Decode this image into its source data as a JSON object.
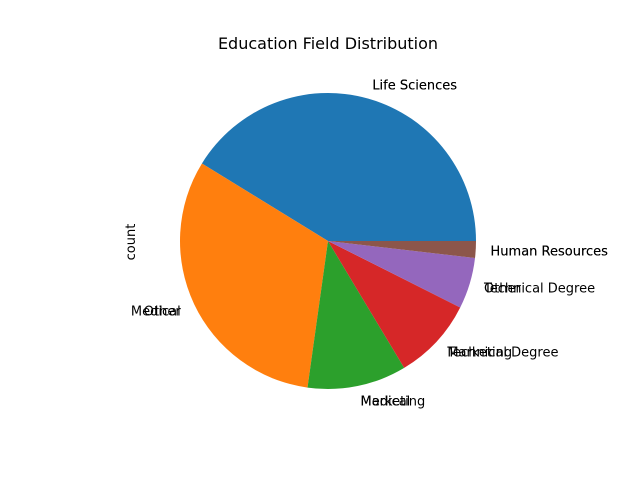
{
  "chart_data": {
    "type": "pie",
    "title": "Education Field Distribution",
    "ylabel": "count",
    "start_angle_deg": 0,
    "direction": "counterclockwise",
    "categories": [
      "Life Sciences",
      "Medical",
      "Marketing",
      "Technical Degree",
      "Other",
      "Human Resources"
    ],
    "values": [
      606,
      464,
      159,
      132,
      82,
      27
    ],
    "colors": [
      "#1f77b4",
      "#ff7f0e",
      "#2ca02c",
      "#d62728",
      "#9467bd",
      "#8c564b"
    ],
    "slice_labels": [
      [
        "Life Sciences",
        "Life Sciences"
      ],
      [
        "Medical",
        "Other"
      ],
      [
        "Medical",
        "Marketing"
      ],
      [
        "Technical Degree",
        "Marketing"
      ],
      [
        "Technical Degree",
        "Other"
      ],
      [
        "Human Resources",
        "Human Resources"
      ]
    ]
  }
}
